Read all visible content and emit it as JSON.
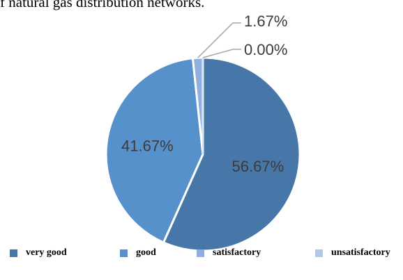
{
  "caption": "f natural gas distribution networks.",
  "chart_data": {
    "type": "pie",
    "title": "",
    "slices": [
      {
        "label": "very good",
        "value": 56.67,
        "value_label": "56.67%",
        "color": "#4677a8"
      },
      {
        "label": "good",
        "value": 41.67,
        "value_label": "41.67%",
        "color": "#5791cb"
      },
      {
        "label": "satisfactory",
        "value": 1.67,
        "value_label": "1.67%",
        "color": "#8fb0de"
      },
      {
        "label": "unsatisfactory",
        "value": 0.0,
        "value_label": "0.00%",
        "color": "#b2c8e6"
      }
    ],
    "legend_position": "bottom"
  }
}
